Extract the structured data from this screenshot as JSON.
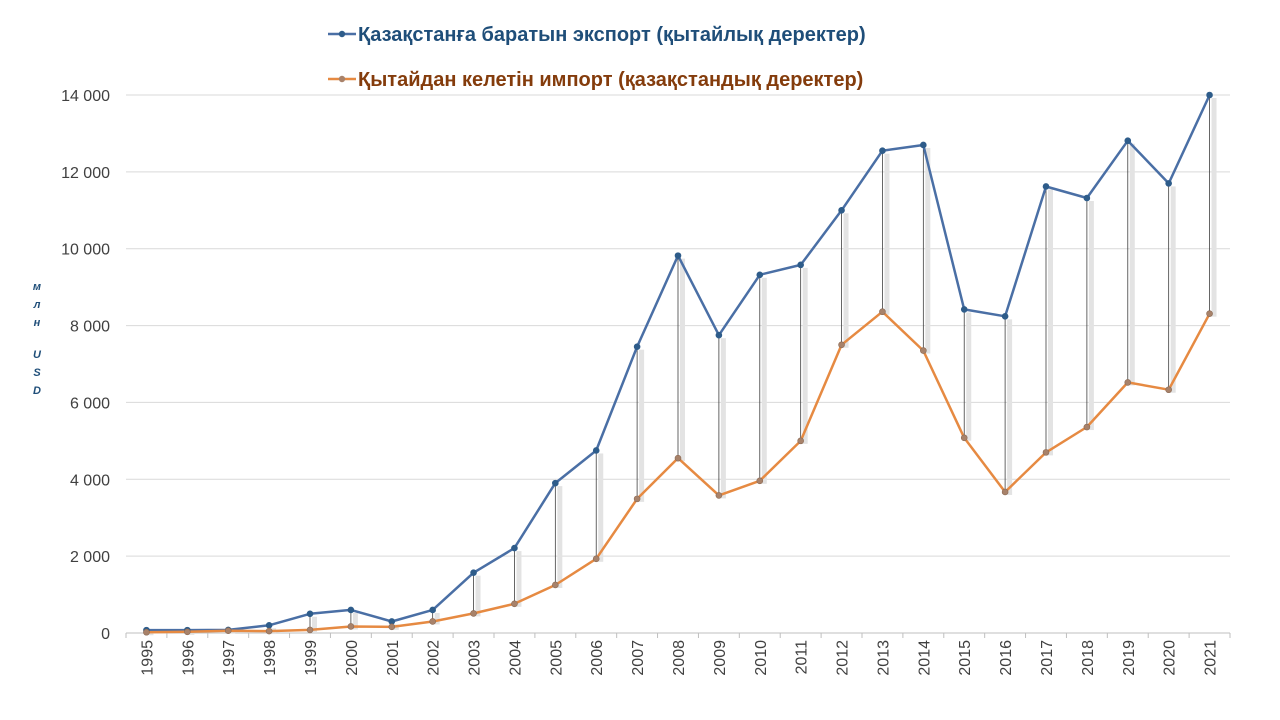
{
  "chart_data": {
    "type": "line",
    "categories": [
      "1995",
      "1996",
      "1997",
      "1998",
      "1999",
      "2000",
      "2001",
      "2002",
      "2003",
      "2004",
      "2005",
      "2006",
      "2007",
      "2008",
      "2009",
      "2010",
      "2011",
      "2012",
      "2013",
      "2014",
      "2015",
      "2016",
      "2017",
      "2018",
      "2019",
      "2020",
      "2021"
    ],
    "series": [
      {
        "name": "Қазақстанға баратын экспорт (қытайлық деректер)",
        "color": "#4a6fa5",
        "marker_color": "#2e5c8a",
        "values": [
          75,
          75,
          80,
          200,
          500,
          600,
          300,
          600,
          1570,
          2210,
          3900,
          4750,
          7450,
          9820,
          7750,
          9320,
          9580,
          11000,
          12550,
          12700,
          8420,
          8240,
          11620,
          11320,
          12810,
          11700,
          14000
        ]
      },
      {
        "name": "Қытайдан келетін импорт (қазақстандық деректер)",
        "color": "#e68a42",
        "marker_color": "#a8826a",
        "values": [
          20,
          30,
          60,
          50,
          80,
          170,
          160,
          300,
          510,
          760,
          1250,
          1930,
          3490,
          4550,
          3580,
          3960,
          5000,
          7500,
          8360,
          7350,
          5080,
          3670,
          4700,
          5360,
          6520,
          6330,
          8310
        ]
      }
    ],
    "ylabel": "млн USD",
    "ylim": [
      0,
      14000
    ],
    "yticks": [
      0,
      2000,
      4000,
      6000,
      8000,
      10000,
      12000,
      14000
    ],
    "ytick_labels": [
      "0",
      "2 000",
      "4 000",
      "6 000",
      "8 000",
      "10 000",
      "12 000",
      "14 000"
    ],
    "grid": true,
    "legend_position": "top-center",
    "legend_label_colors": [
      "#1f4e79",
      "#843c0c"
    ],
    "ylabel_color": "#1f4e79"
  }
}
